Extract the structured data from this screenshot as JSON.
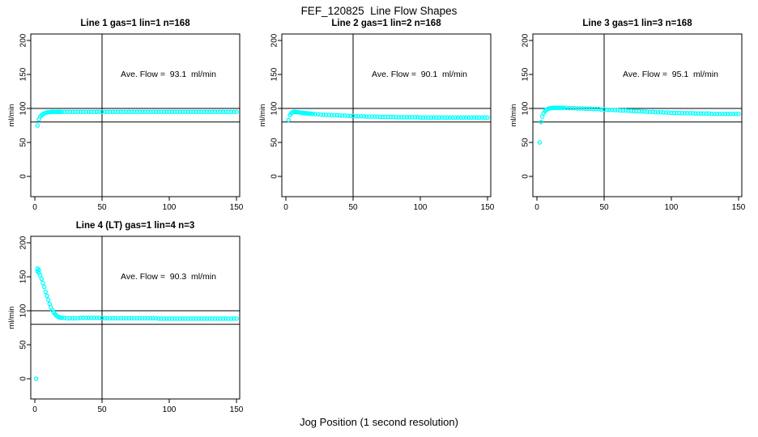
{
  "figure": {
    "title": "FEF_120825  Line Flow Shapes",
    "xlabel": "Jog Position (1 second resolution)",
    "background_color": "#ffffff",
    "axis_color": "#000000"
  },
  "chart_data": [
    {
      "type": "scatter",
      "title": "Line 1 gas=1 lin=1 n=168",
      "annotation": "Ave. Flow =  93.1  ml/min",
      "ave_flow_ml_min": 93.1,
      "ylabel": "ml/min",
      "xlim": [
        0,
        150
      ],
      "ylim": [
        0,
        200
      ],
      "xticks": [
        0,
        50,
        100,
        150
      ],
      "yticks": [
        0,
        50,
        100,
        150,
        200
      ],
      "hlines": [
        100,
        80
      ],
      "vlines": [
        50
      ],
      "grid": false,
      "marker": "open-circle",
      "marker_color": "#00FFFF",
      "points": [
        [
          2,
          75
        ],
        [
          3,
          84
        ],
        [
          4,
          88
        ],
        [
          5,
          90
        ],
        [
          6,
          91.5
        ],
        [
          7,
          92.5
        ],
        [
          8,
          93.5
        ],
        [
          9,
          94
        ],
        [
          10,
          94.5
        ],
        [
          11,
          94.5
        ],
        [
          12,
          95
        ],
        [
          13,
          95
        ],
        [
          14,
          95
        ],
        [
          15,
          95
        ],
        [
          16,
          95
        ],
        [
          17,
          95
        ],
        [
          18,
          95
        ],
        [
          19,
          95
        ],
        [
          20,
          95
        ],
        [
          22,
          95
        ],
        [
          24,
          95
        ],
        [
          26,
          95
        ],
        [
          28,
          95
        ],
        [
          30,
          95
        ],
        [
          32,
          95
        ],
        [
          34,
          95
        ],
        [
          36,
          95
        ],
        [
          38,
          95
        ],
        [
          40,
          95
        ],
        [
          42,
          95
        ],
        [
          44,
          95
        ],
        [
          46,
          95
        ],
        [
          48,
          95
        ],
        [
          50,
          95
        ],
        [
          52,
          95
        ],
        [
          54,
          95
        ],
        [
          56,
          95
        ],
        [
          58,
          95
        ],
        [
          60,
          95
        ],
        [
          62,
          95
        ],
        [
          64,
          95
        ],
        [
          66,
          95
        ],
        [
          68,
          95
        ],
        [
          70,
          95
        ],
        [
          72,
          95
        ],
        [
          74,
          95
        ],
        [
          76,
          95
        ],
        [
          78,
          95
        ],
        [
          80,
          95
        ],
        [
          82,
          95
        ],
        [
          84,
          95
        ],
        [
          86,
          95
        ],
        [
          88,
          95
        ],
        [
          90,
          95
        ],
        [
          92,
          95
        ],
        [
          94,
          95
        ],
        [
          96,
          95
        ],
        [
          98,
          95
        ],
        [
          100,
          95
        ],
        [
          102,
          95
        ],
        [
          104,
          95
        ],
        [
          106,
          95
        ],
        [
          108,
          95
        ],
        [
          110,
          95
        ],
        [
          112,
          95
        ],
        [
          114,
          95
        ],
        [
          116,
          95
        ],
        [
          118,
          95
        ],
        [
          120,
          95
        ],
        [
          122,
          95
        ],
        [
          124,
          95
        ],
        [
          126,
          95
        ],
        [
          128,
          95
        ],
        [
          130,
          95
        ],
        [
          132,
          95
        ],
        [
          134,
          95
        ],
        [
          136,
          95
        ],
        [
          138,
          95
        ],
        [
          140,
          95
        ],
        [
          142,
          95
        ],
        [
          144,
          95
        ],
        [
          146,
          95
        ],
        [
          148,
          95
        ],
        [
          150,
          95
        ]
      ]
    },
    {
      "type": "scatter",
      "title": "Line 2 gas=1 lin=2 n=168",
      "annotation": "Ave. Flow =  90.1  ml/min",
      "ave_flow_ml_min": 90.1,
      "ylabel": "ml/min",
      "xlim": [
        0,
        150
      ],
      "ylim": [
        0,
        200
      ],
      "xticks": [
        0,
        50,
        100,
        150
      ],
      "yticks": [
        0,
        50,
        100,
        150,
        200
      ],
      "hlines": [
        100,
        80
      ],
      "vlines": [
        50
      ],
      "grid": false,
      "marker": "open-circle",
      "marker_color": "#00FFFF",
      "points": [
        [
          2,
          83
        ],
        [
          3,
          90
        ],
        [
          4,
          93
        ],
        [
          5,
          94.5
        ],
        [
          6,
          95
        ],
        [
          7,
          95
        ],
        [
          8,
          94.5
        ],
        [
          9,
          94.5
        ],
        [
          10,
          94
        ],
        [
          11,
          94
        ],
        [
          12,
          93.5
        ],
        [
          13,
          93.5
        ],
        [
          14,
          93
        ],
        [
          15,
          93
        ],
        [
          16,
          92.5
        ],
        [
          17,
          92.5
        ],
        [
          18,
          92.5
        ],
        [
          19,
          92
        ],
        [
          20,
          92
        ],
        [
          22,
          91.5
        ],
        [
          24,
          91.5
        ],
        [
          26,
          91
        ],
        [
          28,
          91
        ],
        [
          30,
          90.5
        ],
        [
          32,
          90.5
        ],
        [
          34,
          90
        ],
        [
          36,
          90
        ],
        [
          38,
          90
        ],
        [
          40,
          89.5
        ],
        [
          42,
          89.5
        ],
        [
          44,
          89.5
        ],
        [
          46,
          89
        ],
        [
          48,
          89
        ],
        [
          50,
          89
        ],
        [
          52,
          88.5
        ],
        [
          54,
          88.5
        ],
        [
          56,
          88.5
        ],
        [
          58,
          88.5
        ],
        [
          60,
          88
        ],
        [
          62,
          88
        ],
        [
          64,
          88
        ],
        [
          66,
          88
        ],
        [
          68,
          88
        ],
        [
          70,
          87.5
        ],
        [
          72,
          87.5
        ],
        [
          74,
          87.5
        ],
        [
          76,
          87.5
        ],
        [
          78,
          87.5
        ],
        [
          80,
          87.5
        ],
        [
          82,
          87
        ],
        [
          84,
          87
        ],
        [
          86,
          87
        ],
        [
          88,
          87
        ],
        [
          90,
          87
        ],
        [
          92,
          87
        ],
        [
          94,
          87
        ],
        [
          96,
          87
        ],
        [
          98,
          87
        ],
        [
          100,
          86.5
        ],
        [
          102,
          86.5
        ],
        [
          104,
          86.5
        ],
        [
          106,
          86.5
        ],
        [
          108,
          86.5
        ],
        [
          110,
          86.5
        ],
        [
          112,
          86.5
        ],
        [
          114,
          86.5
        ],
        [
          116,
          86.5
        ],
        [
          118,
          86.5
        ],
        [
          120,
          86.5
        ],
        [
          122,
          86.5
        ],
        [
          124,
          86.5
        ],
        [
          126,
          86.5
        ],
        [
          128,
          86.5
        ],
        [
          130,
          86.5
        ],
        [
          132,
          86.5
        ],
        [
          134,
          86.5
        ],
        [
          136,
          86.5
        ],
        [
          138,
          86.5
        ],
        [
          140,
          86.5
        ],
        [
          142,
          86.5
        ],
        [
          144,
          86.5
        ],
        [
          146,
          86.5
        ],
        [
          148,
          86.5
        ],
        [
          150,
          86.5
        ]
      ]
    },
    {
      "type": "scatter",
      "title": "Line 3 gas=1 lin=3 n=168",
      "annotation": "Ave. Flow =  95.1  ml/min",
      "ave_flow_ml_min": 95.1,
      "ylabel": "ml/min",
      "xlim": [
        0,
        150
      ],
      "ylim": [
        0,
        200
      ],
      "xticks": [
        0,
        50,
        100,
        150
      ],
      "yticks": [
        0,
        50,
        100,
        150,
        200
      ],
      "hlines": [
        100,
        80
      ],
      "vlines": [
        50
      ],
      "grid": false,
      "marker": "open-circle",
      "marker_color": "#00FFFF",
      "points": [
        [
          2,
          50
        ],
        [
          3,
          80
        ],
        [
          4,
          88
        ],
        [
          5,
          93
        ],
        [
          6,
          96
        ],
        [
          7,
          98
        ],
        [
          8,
          99
        ],
        [
          9,
          100
        ],
        [
          10,
          100.5
        ],
        [
          11,
          100.5
        ],
        [
          12,
          101
        ],
        [
          13,
          101
        ],
        [
          14,
          101
        ],
        [
          15,
          101
        ],
        [
          16,
          101
        ],
        [
          17,
          101
        ],
        [
          18,
          101
        ],
        [
          19,
          101
        ],
        [
          20,
          101
        ],
        [
          22,
          101
        ],
        [
          24,
          100.5
        ],
        [
          26,
          100.5
        ],
        [
          28,
          100.5
        ],
        [
          30,
          100
        ],
        [
          32,
          100
        ],
        [
          34,
          100
        ],
        [
          36,
          99.5
        ],
        [
          38,
          99.5
        ],
        [
          40,
          99.5
        ],
        [
          42,
          99
        ],
        [
          44,
          99
        ],
        [
          46,
          99
        ],
        [
          48,
          98.5
        ],
        [
          50,
          98.5
        ],
        [
          52,
          98
        ],
        [
          54,
          98
        ],
        [
          56,
          98
        ],
        [
          58,
          97.5
        ],
        [
          60,
          97.5
        ],
        [
          62,
          97
        ],
        [
          64,
          97
        ],
        [
          66,
          97
        ],
        [
          68,
          96.5
        ],
        [
          70,
          96.5
        ],
        [
          72,
          96
        ],
        [
          74,
          96
        ],
        [
          76,
          96
        ],
        [
          78,
          95.5
        ],
        [
          80,
          95.5
        ],
        [
          82,
          95
        ],
        [
          84,
          95
        ],
        [
          86,
          95
        ],
        [
          88,
          94.5
        ],
        [
          90,
          94.5
        ],
        [
          92,
          94.5
        ],
        [
          94,
          94
        ],
        [
          96,
          94
        ],
        [
          98,
          94
        ],
        [
          100,
          93.5
        ],
        [
          102,
          93.5
        ],
        [
          104,
          93.5
        ],
        [
          106,
          93.5
        ],
        [
          108,
          93
        ],
        [
          110,
          93
        ],
        [
          112,
          93
        ],
        [
          114,
          93
        ],
        [
          116,
          93
        ],
        [
          118,
          92.5
        ],
        [
          120,
          92.5
        ],
        [
          122,
          92.5
        ],
        [
          124,
          92.5
        ],
        [
          126,
          92.5
        ],
        [
          128,
          92.5
        ],
        [
          130,
          92
        ],
        [
          132,
          92
        ],
        [
          134,
          92
        ],
        [
          136,
          92
        ],
        [
          138,
          92
        ],
        [
          140,
          92
        ],
        [
          142,
          92
        ],
        [
          144,
          92
        ],
        [
          146,
          92
        ],
        [
          148,
          92
        ],
        [
          150,
          92
        ]
      ]
    },
    {
      "type": "scatter",
      "title": "Line 4 (LT) gas=1 lin=4 n=3",
      "annotation": "Ave. Flow =  90.3  ml/min",
      "ave_flow_ml_min": 90.3,
      "ylabel": "ml/min",
      "xlim": [
        0,
        150
      ],
      "ylim": [
        0,
        200
      ],
      "xticks": [
        0,
        50,
        100,
        150
      ],
      "yticks": [
        0,
        50,
        100,
        150,
        200
      ],
      "hlines": [
        100,
        80
      ],
      "vlines": [
        50
      ],
      "grid": false,
      "marker": "open-circle",
      "marker_color": "#00FFFF",
      "points": [
        [
          1,
          0
        ],
        [
          2,
          162
        ],
        [
          2,
          158
        ],
        [
          3,
          160
        ],
        [
          3,
          156
        ],
        [
          4,
          152
        ],
        [
          5,
          147
        ],
        [
          6,
          141
        ],
        [
          7,
          135
        ],
        [
          8,
          128
        ],
        [
          9,
          122
        ],
        [
          10,
          116
        ],
        [
          11,
          110
        ],
        [
          12,
          105
        ],
        [
          13,
          101
        ],
        [
          14,
          97.5
        ],
        [
          15,
          95
        ],
        [
          16,
          93
        ],
        [
          17,
          91.5
        ],
        [
          18,
          90.5
        ],
        [
          19,
          90
        ],
        [
          20,
          89.5
        ],
        [
          22,
          89.5
        ],
        [
          24,
          89
        ],
        [
          26,
          89
        ],
        [
          28,
          89
        ],
        [
          30,
          89
        ],
        [
          32,
          89
        ],
        [
          34,
          89.5
        ],
        [
          36,
          89.5
        ],
        [
          38,
          89.5
        ],
        [
          40,
          89.5
        ],
        [
          42,
          89.5
        ],
        [
          44,
          89.5
        ],
        [
          46,
          89.5
        ],
        [
          48,
          89.5
        ],
        [
          50,
          89.5
        ],
        [
          52,
          89
        ],
        [
          54,
          89
        ],
        [
          56,
          89
        ],
        [
          58,
          89
        ],
        [
          60,
          89
        ],
        [
          62,
          89
        ],
        [
          64,
          89
        ],
        [
          66,
          89
        ],
        [
          68,
          89
        ],
        [
          70,
          89
        ],
        [
          72,
          89
        ],
        [
          74,
          89
        ],
        [
          76,
          89
        ],
        [
          78,
          89
        ],
        [
          80,
          89
        ],
        [
          82,
          89
        ],
        [
          84,
          89
        ],
        [
          86,
          89
        ],
        [
          88,
          89
        ],
        [
          90,
          89
        ],
        [
          92,
          88.5
        ],
        [
          94,
          88.5
        ],
        [
          96,
          88.5
        ],
        [
          98,
          88.5
        ],
        [
          100,
          88.5
        ],
        [
          102,
          88.5
        ],
        [
          104,
          88.5
        ],
        [
          106,
          88.5
        ],
        [
          108,
          88.5
        ],
        [
          110,
          88.5
        ],
        [
          112,
          88.5
        ],
        [
          114,
          88.5
        ],
        [
          116,
          88.5
        ],
        [
          118,
          88.5
        ],
        [
          120,
          88.5
        ],
        [
          122,
          88.5
        ],
        [
          124,
          88.5
        ],
        [
          126,
          88.5
        ],
        [
          128,
          88.5
        ],
        [
          130,
          88.5
        ],
        [
          132,
          88.5
        ],
        [
          134,
          88.5
        ],
        [
          136,
          88.5
        ],
        [
          138,
          88.5
        ],
        [
          140,
          88.5
        ],
        [
          142,
          88.5
        ],
        [
          144,
          88.5
        ],
        [
          146,
          88.5
        ],
        [
          148,
          88.5
        ],
        [
          150,
          88.5
        ]
      ]
    }
  ]
}
